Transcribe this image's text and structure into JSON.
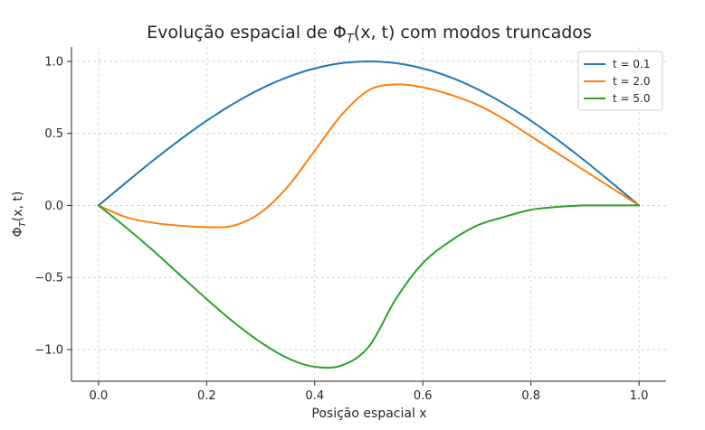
{
  "chart_data": {
    "type": "line",
    "title": "Evolução espacial de Φ",
    "title_sub": "T",
    "title_suffix": "(x, t) com modos truncados",
    "xlabel": "Posição espacial x",
    "ylabel": "Φ",
    "ylabel_sub": "T",
    "ylabel_suffix": "(x, t)",
    "xlim": [
      -0.05,
      1.05
    ],
    "ylim": [
      -1.22,
      1.1
    ],
    "xticks": [
      0.0,
      0.2,
      0.4,
      0.6,
      0.8,
      1.0
    ],
    "xtick_labels": [
      "0.0",
      "0.2",
      "0.4",
      "0.6",
      "0.8",
      "1.0"
    ],
    "yticks": [
      1.0,
      0.5,
      0.0,
      -0.5,
      -1.0
    ],
    "ytick_labels": [
      "1.0",
      "0.5",
      "0.0",
      "−0.5",
      "−1.0"
    ],
    "grid": true,
    "legend_position": "top-right",
    "series": [
      {
        "name": "t = 0.1",
        "color": "#1f77b4",
        "x": [
          0.0,
          0.05,
          0.1,
          0.15,
          0.2,
          0.25,
          0.3,
          0.35,
          0.4,
          0.45,
          0.5,
          0.55,
          0.6,
          0.65,
          0.7,
          0.75,
          0.8,
          0.85,
          0.9,
          0.95,
          1.0
        ],
        "y": [
          0.0,
          0.156,
          0.309,
          0.454,
          0.588,
          0.707,
          0.809,
          0.891,
          0.951,
          0.988,
          1.0,
          0.988,
          0.951,
          0.891,
          0.809,
          0.707,
          0.588,
          0.454,
          0.309,
          0.156,
          0.0
        ]
      },
      {
        "name": "t = 2.0",
        "color": "#ff7f0e",
        "x": [
          0.0,
          0.05,
          0.1,
          0.15,
          0.2,
          0.25,
          0.3,
          0.35,
          0.4,
          0.45,
          0.5,
          0.55,
          0.6,
          0.65,
          0.7,
          0.75,
          0.8,
          0.85,
          0.9,
          0.95,
          1.0
        ],
        "y": [
          0.0,
          -0.08,
          -0.12,
          -0.14,
          -0.15,
          -0.14,
          -0.05,
          0.13,
          0.38,
          0.63,
          0.8,
          0.84,
          0.82,
          0.77,
          0.7,
          0.6,
          0.48,
          0.36,
          0.24,
          0.12,
          0.0
        ]
      },
      {
        "name": "t = 5.0",
        "color": "#2ca02c",
        "x": [
          0.0,
          0.05,
          0.1,
          0.15,
          0.2,
          0.25,
          0.3,
          0.35,
          0.4,
          0.45,
          0.5,
          0.55,
          0.6,
          0.65,
          0.7,
          0.75,
          0.8,
          0.85,
          0.9,
          0.95,
          1.0
        ],
        "y": [
          0.0,
          -0.15,
          -0.31,
          -0.48,
          -0.65,
          -0.81,
          -0.95,
          -1.06,
          -1.12,
          -1.11,
          -0.98,
          -0.65,
          -0.4,
          -0.25,
          -0.14,
          -0.08,
          -0.03,
          -0.01,
          0.0,
          0.0,
          0.0
        ]
      }
    ]
  }
}
